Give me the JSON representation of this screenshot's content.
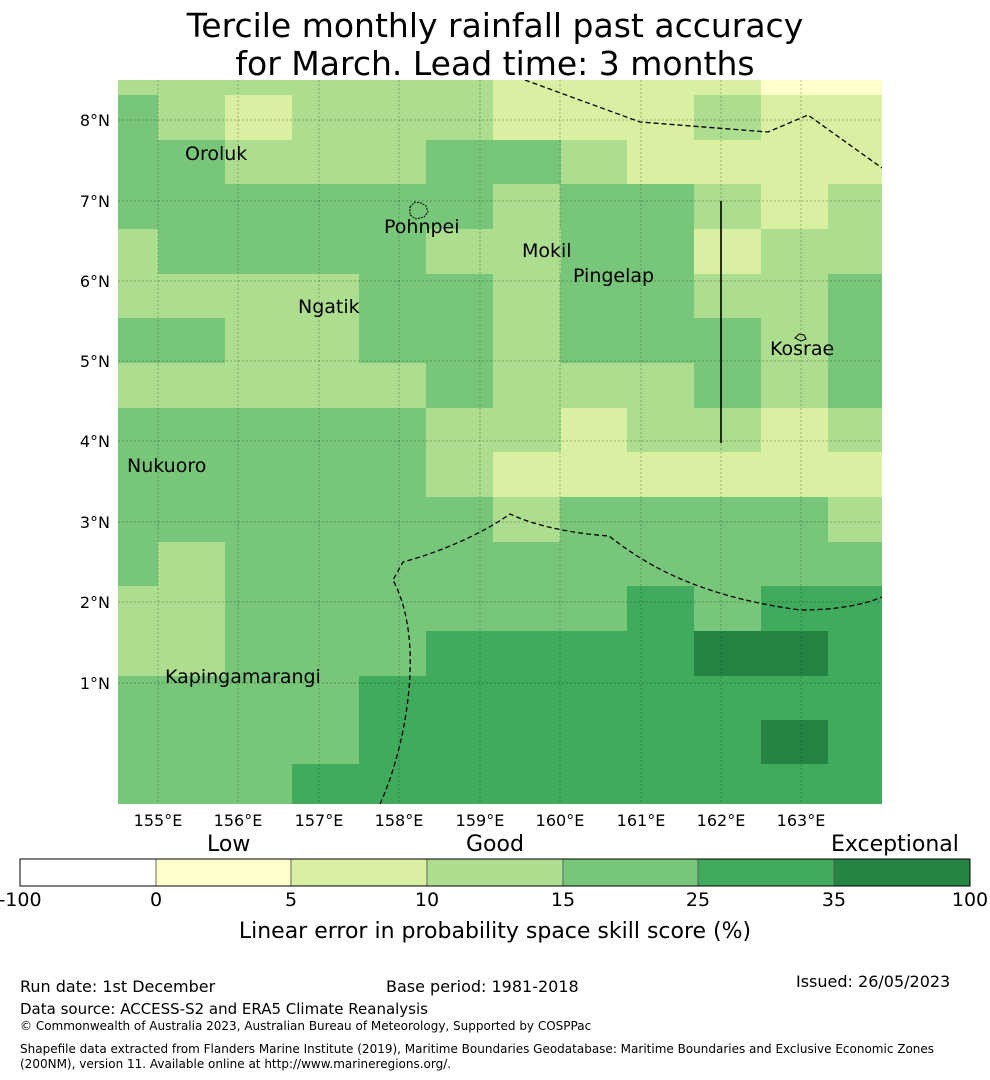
{
  "title_line1": "Tercile monthly rainfall past accuracy",
  "title_line2": "for March. Lead time: 3 months",
  "map": {
    "lon_labels": [
      "155°E",
      "156°E",
      "157°E",
      "158°E",
      "159°E",
      "160°E",
      "161°E",
      "162°E",
      "163°E"
    ],
    "lat_labels": [
      "8°N",
      "7°N",
      "6°N",
      "5°N",
      "4°N",
      "3°N",
      "2°N",
      "1°N"
    ],
    "places": [
      {
        "name": "Oroluk"
      },
      {
        "name": "Pohnpei"
      },
      {
        "name": "Mokil"
      },
      {
        "name": "Pingelap"
      },
      {
        "name": "Ngatik"
      },
      {
        "name": "Kosrae"
      },
      {
        "name": "Nukuoro"
      },
      {
        "name": "Kapingamarangi"
      }
    ]
  },
  "colorbar": {
    "categories": [
      "Low",
      "Good",
      "Exceptional"
    ],
    "ticks": [
      "-100",
      "0",
      "5",
      "10",
      "15",
      "25",
      "35",
      "100"
    ],
    "colors": [
      "#ffffff",
      "#ffffcc",
      "#d9f0a3",
      "#addd8e",
      "#78c679",
      "#41ab5d",
      "#238443"
    ],
    "label": "Linear error in probability space skill score (%)"
  },
  "footer": {
    "run_date": "Run date: 1st December",
    "base_period": "Base period: 1981-2018",
    "issued": "Issued: 26/05/2023",
    "data_source": "Data source: ACCESS-S2 and ERA5 Climate Reanalysis",
    "copyright": "© Commonwealth of Australia 2023, Australian Bureau of Meteorology, Supported by COSPPac",
    "shapefile": "Shapefile data extracted from Flanders Marine Institute (2019), Maritime Boundaries Geodatabase: Maritime Boundaries and Exclusive Economic Zones (200NM), version 11. Available online at http://www.marineregions.org/."
  }
}
